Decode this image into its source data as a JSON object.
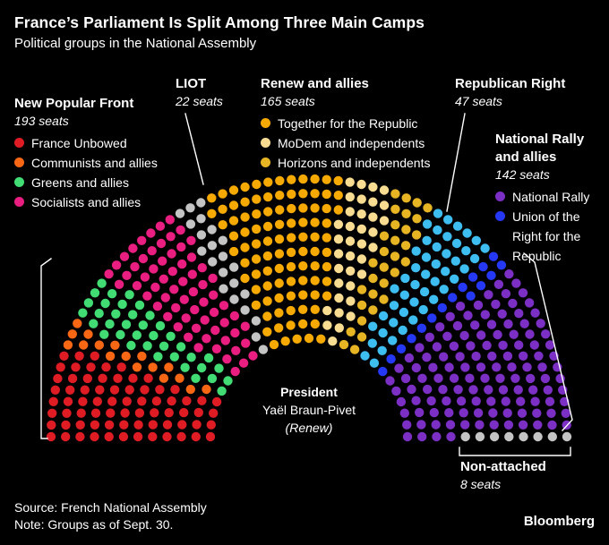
{
  "header": {
    "title": "France’s Parliament Is Split Among Three Main Camps",
    "subtitle": "Political groups in the National Assembly"
  },
  "legend": {
    "npf": {
      "title": "New Popular Front",
      "seats_label": "193 seats",
      "items": [
        "France Unbowed",
        "Communists and allies",
        "Greens and allies",
        "Socialists and allies"
      ]
    },
    "liot": {
      "title": "LIOT",
      "seats_label": "22 seats"
    },
    "renew": {
      "title": "Renew and allies",
      "seats_label": "165 seats",
      "items": [
        "Together for the Republic",
        "MoDem and independents",
        "Horizons and independents"
      ]
    },
    "republican_right": {
      "title": "Republican Right",
      "seats_label": "47 seats"
    },
    "national_rally": {
      "title": "National Rally and allies",
      "seats_label": "142 seats",
      "items": [
        "National Rally",
        "Union of the Right for the Republic"
      ]
    },
    "non_attached": {
      "title": "Non-attached",
      "seats_label": "8 seats"
    }
  },
  "footer": {
    "source": "Source: French National Assembly",
    "note": "Note: Groups as of Sept. 30.",
    "brand": "Bloomberg"
  },
  "chart_data": {
    "type": "parliament",
    "title": "France’s Parliament Is Split Among Three Main Camps",
    "subtitle": "Political groups in the National Assembly",
    "total_seats": 577,
    "layout_hint": {
      "shape": "hemicycle",
      "rows": 12
    },
    "groups": [
      {
        "name": "New Popular Front",
        "seats": 193
      },
      {
        "name": "LIOT",
        "seats": 22
      },
      {
        "name": "Renew and allies",
        "seats": 165
      },
      {
        "name": "Republican Right",
        "seats": 47
      },
      {
        "name": "National Rally and allies",
        "seats": 142
      },
      {
        "name": "Non-attached",
        "seats": 8
      }
    ],
    "parties": [
      {
        "name": "France Unbowed",
        "group": "New Popular Front",
        "seats": 72,
        "color": "#df1c24"
      },
      {
        "name": "Communists and allies",
        "group": "New Popular Front",
        "seats": 17,
        "color": "#f96714"
      },
      {
        "name": "Greens and allies",
        "group": "New Popular Front",
        "seats": 38,
        "color": "#41dd74"
      },
      {
        "name": "Socialists and allies",
        "group": "New Popular Front",
        "seats": 66,
        "color": "#e91e80"
      },
      {
        "name": "LIOT",
        "group": "LIOT",
        "seats": 22,
        "color": "#c4c4c4"
      },
      {
        "name": "Together for the Republic",
        "group": "Renew and allies",
        "seats": 98,
        "color": "#f6a900"
      },
      {
        "name": "MoDem and independents",
        "group": "Renew and allies",
        "seats": 36,
        "color": "#f8dc92"
      },
      {
        "name": "Horizons and independents",
        "group": "Renew and allies",
        "seats": 31,
        "color": "#e7b424"
      },
      {
        "name": "Republican Right",
        "group": "Republican Right",
        "seats": 47,
        "color": "#3dbdf0"
      },
      {
        "name": "Union of the Right for the Republic",
        "group": "National Rally and allies",
        "seats": 16,
        "color": "#2438f5"
      },
      {
        "name": "National Rally",
        "group": "National Rally and allies",
        "seats": 126,
        "color": "#7c2fc4"
      },
      {
        "name": "Non-attached",
        "group": "Non-attached",
        "seats": 8,
        "color": "#c4c4c4"
      }
    ],
    "president": {
      "role": "President",
      "name": "Yaël Braun-Pivet",
      "party": "(Renew)"
    }
  }
}
